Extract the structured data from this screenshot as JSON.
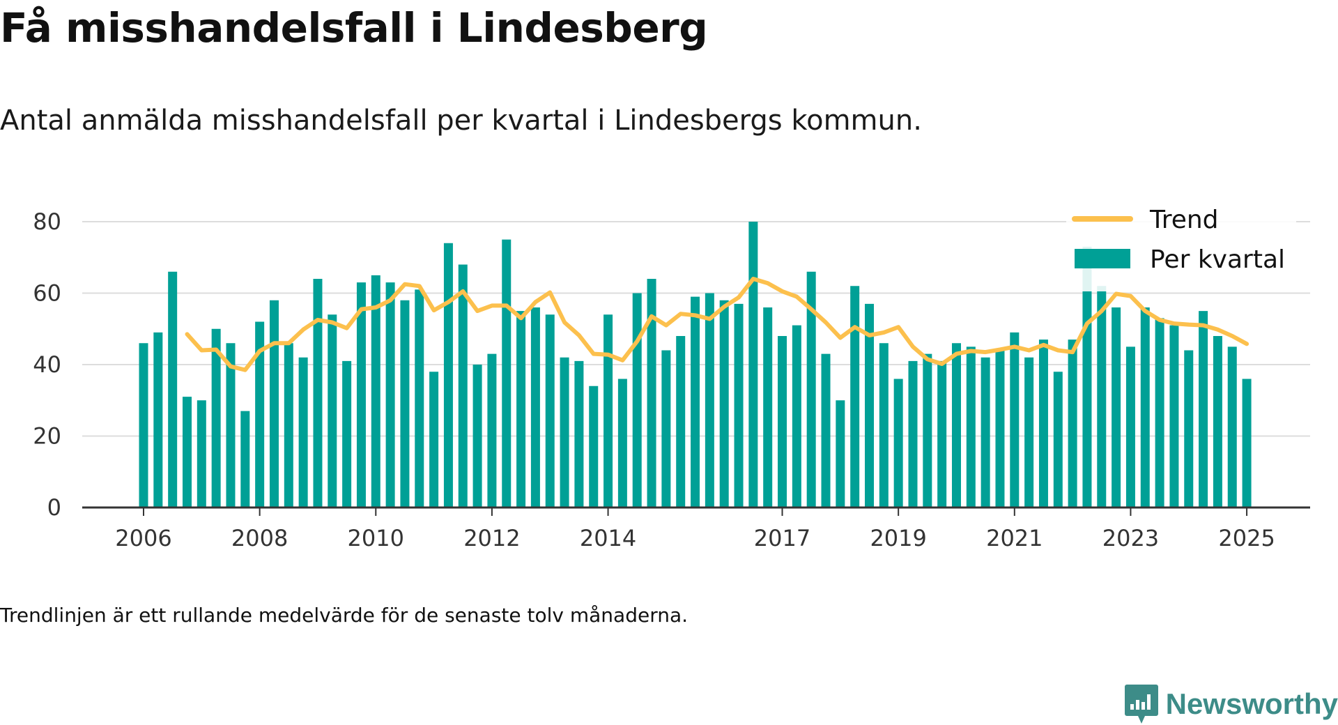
{
  "title": "Få misshandelsfall i Lindesberg",
  "subtitle": "Antal anmälda misshandelsfall per kvartal i Lindesbergs kommun.",
  "footnote": "Trendlinjen är ett rullande medelvärde för de senaste tolv månaderna.",
  "brand": {
    "name": "Newsworthy",
    "icon": "newsworthy-logo-icon"
  },
  "colors": {
    "bars": "#00a096",
    "trend": "#fcc04d",
    "grid": "#dddddd",
    "axis": "#333333"
  },
  "chart_data": {
    "type": "bar",
    "title": "Få misshandelsfall i Lindesberg",
    "xlabel": "",
    "ylabel": "",
    "ylim": [
      0,
      80
    ],
    "yticks": [
      0,
      20,
      40,
      60,
      80
    ],
    "xticks": [
      "2006",
      "2008",
      "2010",
      "2012",
      "2014",
      "2017",
      "2019",
      "2021",
      "2023",
      "2025"
    ],
    "grid": true,
    "legend_position": "top-right",
    "legend": [
      {
        "label": "Trend",
        "kind": "line"
      },
      {
        "label": "Per kvartal",
        "kind": "bar"
      }
    ],
    "categories": [
      "2006 Q1",
      "2006 Q2",
      "2006 Q3",
      "2006 Q4",
      "2007 Q1",
      "2007 Q2",
      "2007 Q3",
      "2007 Q4",
      "2008 Q1",
      "2008 Q2",
      "2008 Q3",
      "2008 Q4",
      "2009 Q1",
      "2009 Q2",
      "2009 Q3",
      "2009 Q4",
      "2010 Q1",
      "2010 Q2",
      "2010 Q3",
      "2010 Q4",
      "2011 Q1",
      "2011 Q2",
      "2011 Q3",
      "2011 Q4",
      "2012 Q1",
      "2012 Q2",
      "2012 Q3",
      "2012 Q4",
      "2013 Q1",
      "2013 Q2",
      "2013 Q3",
      "2013 Q4",
      "2014 Q1",
      "2014 Q2",
      "2014 Q3",
      "2014 Q4",
      "2015 Q1",
      "2015 Q2",
      "2015 Q3",
      "2015 Q4",
      "2016 Q1",
      "2016 Q2",
      "2016 Q3",
      "2016 Q4",
      "2017 Q1",
      "2017 Q2",
      "2017 Q3",
      "2017 Q4",
      "2018 Q1",
      "2018 Q2",
      "2018 Q3",
      "2018 Q4",
      "2019 Q1",
      "2019 Q2",
      "2019 Q3",
      "2019 Q4",
      "2020 Q1",
      "2020 Q2",
      "2020 Q3",
      "2020 Q4",
      "2021 Q1",
      "2021 Q2",
      "2021 Q3",
      "2021 Q4",
      "2022 Q1",
      "2022 Q2",
      "2022 Q3",
      "2022 Q4",
      "2023 Q1",
      "2023 Q2",
      "2023 Q3",
      "2023 Q4",
      "2024 Q1",
      "2024 Q2",
      "2024 Q3",
      "2024 Q4",
      "2025 Q1"
    ],
    "series": [
      {
        "name": "Per kvartal",
        "kind": "bar",
        "values": [
          46,
          49,
          66,
          31,
          30,
          50,
          46,
          27,
          52,
          58,
          46,
          42,
          64,
          54,
          41,
          63,
          65,
          63,
          58,
          61,
          38,
          74,
          68,
          40,
          43,
          75,
          55,
          56,
          54,
          42,
          41,
          34,
          54,
          36,
          60,
          64,
          44,
          48,
          59,
          60,
          58,
          57,
          80,
          56,
          48,
          51,
          66,
          43,
          30,
          62,
          57,
          46,
          36,
          41,
          43,
          41,
          46,
          45,
          42,
          44,
          49,
          42,
          47,
          38,
          47,
          73,
          62,
          56,
          45,
          56,
          53,
          51,
          44,
          55,
          48,
          45,
          36
        ]
      },
      {
        "name": "Trend",
        "kind": "line",
        "values": [
          null,
          null,
          null,
          48.5,
          44,
          44.2,
          39.5,
          38.5,
          43.8,
          46,
          46,
          49.8,
          52.5,
          51.8,
          50.2,
          55.5,
          56,
          58,
          62.5,
          62,
          55.2,
          57.5,
          60.5,
          55,
          56.5,
          56.5,
          53,
          57.5,
          60.2,
          51.8,
          48.2,
          43,
          42.8,
          41.2,
          46.5,
          53.5,
          51,
          54.2,
          53.8,
          52.8,
          56.2,
          58.8,
          64,
          62.8,
          60.5,
          59,
          55.5,
          51.8,
          47.5,
          50.5,
          48.2,
          49,
          50.5,
          45,
          41.5,
          40.2,
          43,
          43.8,
          43.5,
          44.2,
          45,
          44,
          45.5,
          44,
          43.5,
          51.5,
          55,
          59.8,
          59.2,
          55,
          52.5,
          51.5,
          51.2,
          51,
          49.8,
          48,
          45.8
        ]
      }
    ]
  }
}
